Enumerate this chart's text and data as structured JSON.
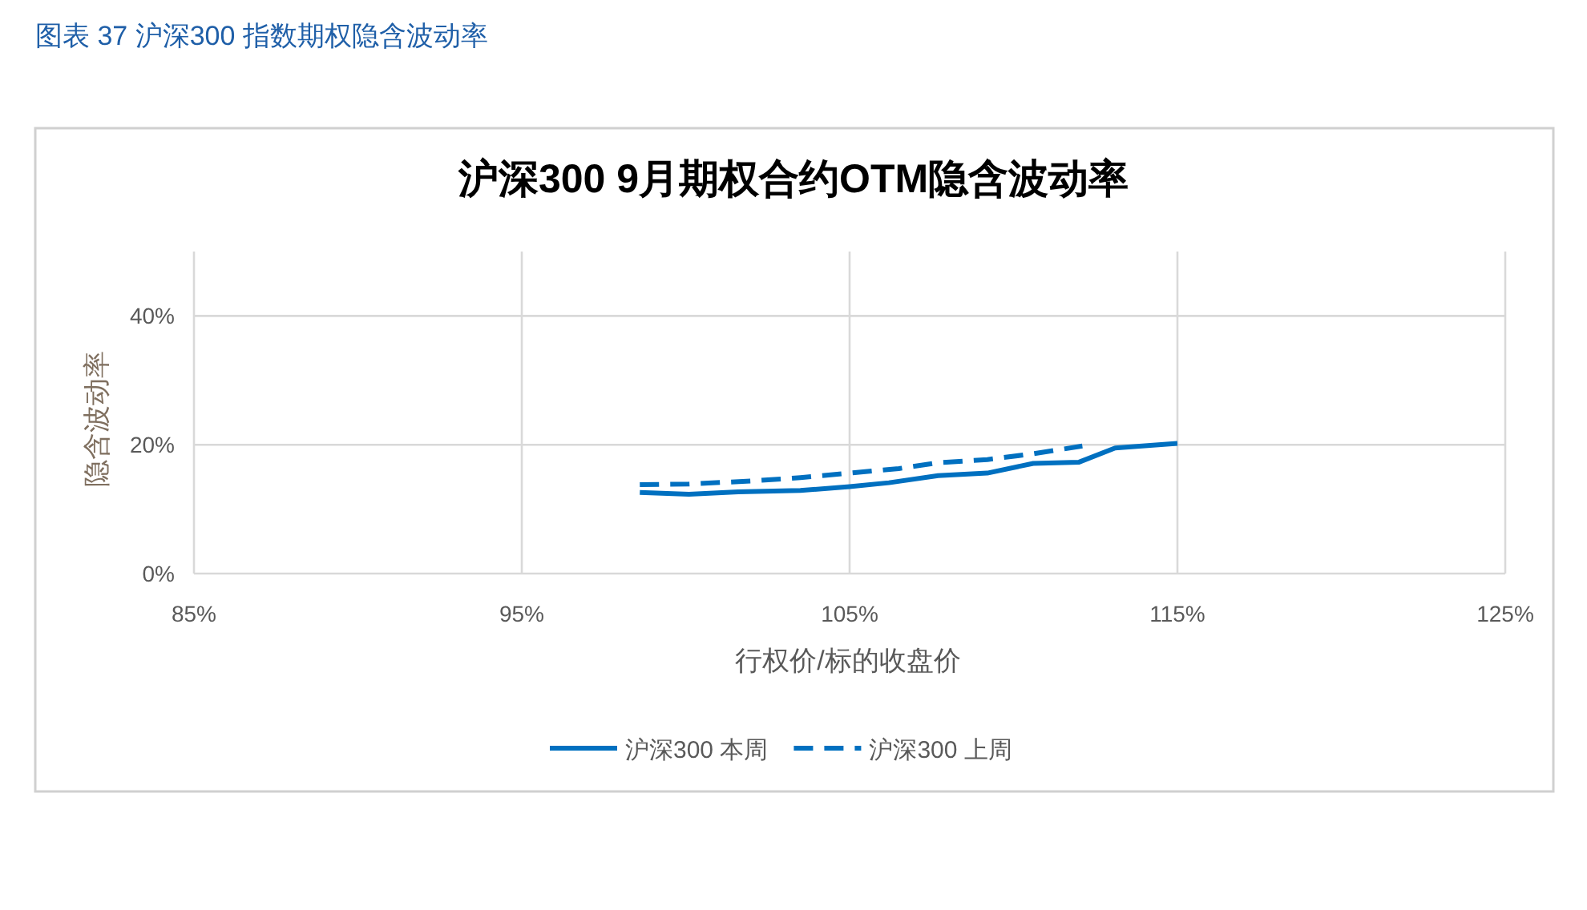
{
  "chart_data": {
    "type": "line",
    "subtitle": "图表 37 沪深300 指数期权隐含波动率",
    "title": "沪深300 9月期权合约OTM隐含波动率",
    "xlabel": "行权价/标的收盘价",
    "ylabel": "隐含波动率",
    "xlim": [
      85,
      125
    ],
    "xticks": [
      {
        "value": 85,
        "label": "85%"
      },
      {
        "value": 95,
        "label": "95%"
      },
      {
        "value": 105,
        "label": "105%"
      },
      {
        "value": 115,
        "label": "115%"
      },
      {
        "value": 125,
        "label": "125%"
      }
    ],
    "ylim": [
      0,
      50
    ],
    "yticks": [
      {
        "value": 0,
        "label": "0%"
      },
      {
        "value": 20,
        "label": "20%"
      },
      {
        "value": 40,
        "label": "40%"
      }
    ],
    "grid": true,
    "legend": "bottom",
    "marker": "none",
    "series": [
      {
        "name": "沪深300 本周",
        "color": "#0070c0",
        "line_style": "solid",
        "x": [
          98.6,
          100.1,
          101.6,
          103.5,
          105.0,
          106.2,
          107.7,
          109.2,
          110.6,
          112.0,
          113.1,
          115.0
        ],
        "values": [
          12.6,
          12.3,
          12.7,
          12.9,
          13.5,
          14.1,
          15.2,
          15.6,
          17.1,
          17.3,
          19.5,
          20.2
        ]
      },
      {
        "name": "沪深300 上周",
        "color": "#0070c0",
        "line_style": "dashed",
        "x": [
          98.6,
          100.1,
          102.1,
          103.5,
          105.0,
          106.5,
          107.7,
          109.2,
          110.6,
          112.1
        ],
        "values": [
          13.8,
          13.9,
          14.4,
          14.9,
          15.6,
          16.3,
          17.2,
          17.7,
          18.6,
          19.8
        ]
      }
    ]
  }
}
